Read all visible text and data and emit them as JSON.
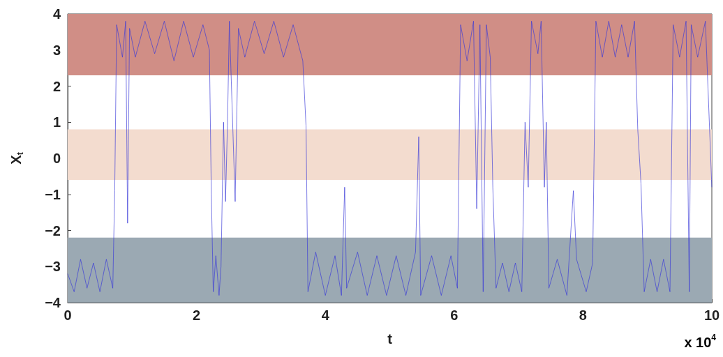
{
  "chart_data": {
    "type": "line",
    "xlabel": "t",
    "ylabel": "X$_{t}$",
    "annotations": [
      "x 10$^{4}$"
    ],
    "xlim": [
      0,
      10
    ],
    "xticks": [
      0,
      2,
      4,
      6,
      8,
      10
    ],
    "ylim": [
      -4,
      4
    ],
    "yticks": [
      -4,
      -3,
      -2,
      -1,
      0,
      1,
      2,
      3,
      4
    ],
    "grid": false,
    "marker": "none",
    "bands": [
      {
        "axis": "y",
        "from": 2.3,
        "to": 4,
        "color": "#d08e86"
      },
      {
        "axis": "y",
        "from": -0.6,
        "to": 0.8,
        "color": "#f3dccf"
      },
      {
        "axis": "y",
        "from": -4,
        "to": -2.2,
        "color": "#9ba9b3"
      }
    ],
    "series": [
      {
        "color": "#3a3ad8",
        "x": [
          0,
          0.1,
          0.2,
          0.3,
          0.4,
          0.5,
          0.6,
          0.7,
          0.73,
          0.76,
          0.85,
          0.9,
          0.93,
          0.96,
          1.05,
          1.2,
          1.35,
          1.5,
          1.65,
          1.8,
          1.95,
          2.1,
          2.2,
          2.23,
          2.26,
          2.3,
          2.35,
          2.38,
          2.42,
          2.45,
          2.48,
          2.51,
          2.6,
          2.65,
          2.75,
          2.9,
          3.05,
          3.2,
          3.35,
          3.5,
          3.65,
          3.7,
          3.73,
          3.85,
          4,
          4.15,
          4.25,
          4.3,
          4.33,
          4.5,
          4.65,
          4.8,
          4.95,
          5.1,
          5.25,
          5.4,
          5.45,
          5.48,
          5.65,
          5.8,
          5.95,
          6.05,
          6.1,
          6.2,
          6.3,
          6.35,
          6.4,
          6.45,
          6.5,
          6.56,
          6.6,
          6.65,
          6.75,
          6.85,
          6.95,
          7.05,
          7.1,
          7.15,
          7.2,
          7.3,
          7.35,
          7.4,
          7.43,
          7.47,
          7.6,
          7.75,
          7.85,
          7.9,
          8.05,
          8.15,
          8.2,
          8.3,
          8.4,
          8.5,
          8.6,
          8.7,
          8.8,
          8.85,
          8.9,
          8.95,
          9.05,
          9.15,
          9.25,
          9.35,
          9.4,
          9.5,
          9.6,
          9.65,
          9.68,
          9.78,
          9.9,
          10
        ],
        "values": [
          -3.2,
          -3.7,
          -2.8,
          -3.6,
          -2.9,
          -3.7,
          -2.8,
          -3.6,
          -0.9,
          3.7,
          2.8,
          3.8,
          -1.8,
          3.6,
          2.8,
          3.8,
          2.9,
          3.8,
          2.7,
          3.8,
          2.8,
          3.7,
          3.0,
          -1.0,
          -3.7,
          -2.7,
          -3.8,
          -3.0,
          1.0,
          -1.2,
          0.9,
          3.8,
          -1.2,
          3.6,
          2.8,
          3.8,
          2.9,
          3.8,
          2.8,
          3.7,
          2.7,
          0.9,
          -3.7,
          -2.6,
          -3.8,
          -2.7,
          -3.8,
          -0.8,
          -3.6,
          -2.6,
          -3.8,
          -2.7,
          -3.8,
          -2.7,
          -3.8,
          -2.6,
          0.6,
          -3.8,
          -2.7,
          -3.8,
          -2.7,
          -3.6,
          3.7,
          2.7,
          3.8,
          -1.4,
          3.7,
          -3.7,
          3.7,
          2.8,
          -0.8,
          -3.6,
          -2.9,
          -3.7,
          -2.9,
          -3.7,
          1.0,
          -0.8,
          3.8,
          2.9,
          3.8,
          -0.8,
          1.0,
          -3.6,
          -2.8,
          -3.8,
          -0.9,
          -2.8,
          -3.7,
          -2.9,
          3.8,
          2.8,
          3.8,
          2.8,
          3.7,
          2.8,
          3.8,
          0.8,
          -0.7,
          -3.7,
          -2.8,
          -3.7,
          -2.8,
          -3.7,
          3.7,
          2.8,
          3.8,
          -3.7,
          3.7,
          2.8,
          3.8,
          -0.8
        ]
      }
    ]
  }
}
